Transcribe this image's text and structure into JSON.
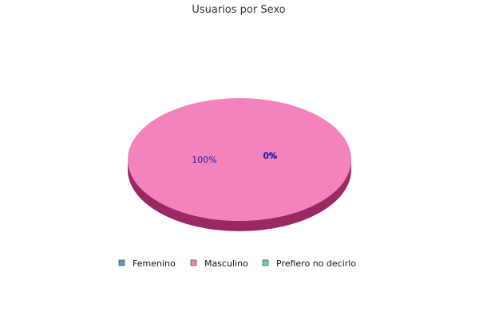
{
  "chart_data": {
    "type": "pie",
    "title": "Usuarios por Sexo",
    "categories": [
      "Femenino",
      "Masculino",
      "Prefiero no decirlo"
    ],
    "values": [
      0,
      100,
      0
    ],
    "data_labels": [
      "0%",
      "100%",
      "0%"
    ],
    "colors": [
      "#5b9bd5",
      "#f383bb",
      "#5fd3a6"
    ],
    "side_color": "#9b2763",
    "style": "3d",
    "legend_position": "bottom"
  }
}
